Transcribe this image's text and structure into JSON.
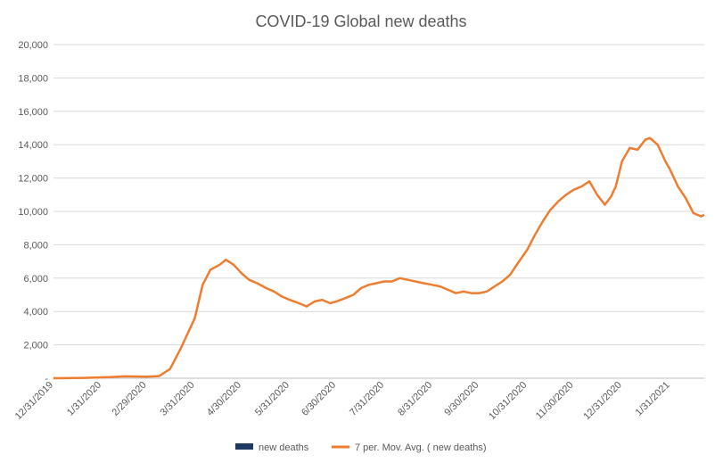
{
  "chart_data": {
    "type": "bar",
    "title": "COVID-19 Global  new deaths",
    "xlabel": "",
    "ylabel": "",
    "ylim": [
      0,
      20000
    ],
    "ytick_labels": [
      "-",
      "2,000",
      "4,000",
      "6,000",
      "8,000",
      "10,000",
      "12,000",
      "14,000",
      "16,000",
      "18,000",
      "20,000"
    ],
    "xtick_labels": [
      "12/31/2019",
      "1/31/2020",
      "2/29/2020",
      "3/31/2020",
      "4/30/2020",
      "5/31/2020",
      "6/30/2020",
      "7/31/2020",
      "8/31/2020",
      "9/30/2020",
      "10/31/2020",
      "11/30/2020",
      "12/31/2020",
      "1/31/2021"
    ],
    "x_start": "2019-12-31",
    "x_end": "2021-02-22",
    "grid": true,
    "legend_position": "bottom",
    "colors": {
      "bars": "#203864",
      "average": "#ed7d31",
      "grid": "#d9d9d9",
      "text": "#595959"
    },
    "series": [
      {
        "name": "new deaths",
        "type": "bar",
        "x_start": "2019-12-31",
        "x_step_days": 1,
        "values": [
          0,
          0,
          0,
          0,
          0,
          0,
          0,
          0,
          0,
          0,
          0,
          0,
          0,
          0,
          0,
          0,
          0,
          0,
          0,
          0,
          0,
          0,
          0,
          0,
          0,
          0,
          0,
          0,
          0,
          0,
          0,
          0,
          0,
          0,
          0,
          0,
          0,
          0,
          0,
          0,
          0,
          0,
          0,
          0,
          0,
          0,
          0,
          0,
          0,
          0,
          0,
          0,
          0,
          0,
          0,
          0,
          0,
          0,
          0,
          0,
          0,
          0,
          0,
          0,
          0,
          0,
          0,
          0,
          0,
          0,
          0,
          0,
          0,
          0,
          0,
          0,
          0,
          0,
          0,
          0,
          0,
          0,
          0,
          0,
          0,
          0,
          0,
          0,
          0,
          0,
          0,
          0,
          0,
          0,
          0,
          0,
          0,
          0,
          0,
          0,
          0,
          0,
          0,
          0,
          0,
          0,
          0,
          0,
          0,
          0,
          0,
          0,
          0,
          0,
          0,
          0,
          0,
          0,
          0,
          0,
          0,
          0,
          0,
          0,
          0,
          0,
          0,
          0,
          0,
          0,
          0,
          0,
          0,
          0,
          0,
          0,
          0,
          0,
          0,
          0,
          0,
          0,
          0,
          0,
          0,
          0,
          0,
          0,
          0,
          0,
          0,
          0,
          0,
          0,
          0,
          0,
          0,
          0,
          0,
          0,
          0,
          0,
          0,
          0,
          0,
          0,
          0,
          0,
          0,
          0,
          0,
          0,
          0,
          0,
          0,
          0,
          0,
          0,
          0,
          0,
          0,
          0,
          0,
          0,
          0,
          0,
          0,
          0,
          0,
          0,
          0,
          0,
          0,
          0,
          0,
          0,
          0,
          0,
          0,
          0,
          0,
          0,
          0,
          0,
          0,
          0,
          0,
          0,
          0,
          0,
          0,
          0,
          0,
          0,
          0,
          0,
          0,
          0,
          0,
          0,
          0,
          0,
          0,
          0,
          0,
          0,
          0,
          0,
          0,
          0,
          0,
          0,
          0,
          0,
          0,
          0,
          0,
          0,
          0,
          0,
          0,
          0,
          0,
          0,
          0,
          0,
          0,
          0,
          0,
          0,
          0,
          0,
          0,
          0,
          0,
          0,
          0,
          0,
          0,
          0,
          0,
          0,
          0,
          0,
          0,
          0,
          0,
          0,
          0,
          0,
          0,
          0,
          0,
          0,
          0,
          0,
          0,
          0,
          0,
          0,
          0,
          0,
          0,
          0,
          0,
          0,
          0,
          0,
          0,
          0,
          0,
          0,
          0,
          0,
          0,
          0,
          0,
          0,
          0,
          0,
          0,
          0,
          0,
          0,
          0,
          0,
          0,
          0,
          0,
          0,
          0,
          0,
          0,
          0,
          0,
          0,
          0,
          0,
          0,
          0,
          0,
          0,
          0,
          0,
          0,
          0,
          0,
          0,
          0,
          0,
          0,
          0,
          0,
          0,
          0,
          0,
          0,
          0,
          0,
          0,
          0,
          0,
          0,
          0,
          0,
          0,
          0,
          0,
          0,
          0,
          0,
          0,
          0,
          0,
          0,
          0,
          0,
          0,
          0,
          0,
          0,
          0,
          0,
          0,
          0,
          0,
          0,
          0,
          0,
          0,
          0,
          0,
          0,
          0,
          0,
          0,
          0,
          0,
          0,
          0,
          0,
          0,
          0,
          0,
          0,
          0,
          0,
          0,
          0,
          0,
          0,
          0,
          0,
          0,
          0,
          0,
          0,
          0,
          0,
          0,
          0,
          0,
          0,
          0,
          0,
          0,
          0,
          0,
          0,
          0,
          0,
          0,
          0,
          0,
          0,
          0,
          0,
          0,
          0,
          0,
          0,
          0,
          0,
          0,
          0,
          0,
          0,
          0,
          0,
          0,
          0,
          0,
          0,
          0,
          0,
          0,
          0,
          0,
          0,
          0,
          0,
          0,
          0,
          0,
          0,
          0,
          0,
          0,
          0,
          0,
          0,
          0,
          0,
          0,
          0,
          0,
          0,
          0,
          0,
          0,
          0,
          0,
          0,
          0,
          0,
          0,
          0,
          0
        ]
      },
      {
        "name": "7 per. Mov. Avg. ( new deaths)",
        "type": "line",
        "x": [
          "2019-12-31",
          "2020-01-20",
          "2020-02-05",
          "2020-02-15",
          "2020-02-29",
          "2020-03-08",
          "2020-03-15",
          "2020-03-22",
          "2020-03-31",
          "2020-04-05",
          "2020-04-10",
          "2020-04-16",
          "2020-04-20",
          "2020-04-25",
          "2020-04-30",
          "2020-05-05",
          "2020-05-10",
          "2020-05-16",
          "2020-05-21",
          "2020-05-26",
          "2020-05-31",
          "2020-06-06",
          "2020-06-11",
          "2020-06-16",
          "2020-06-21",
          "2020-06-26",
          "2020-06-30",
          "2020-07-06",
          "2020-07-11",
          "2020-07-16",
          "2020-07-21",
          "2020-07-26",
          "2020-07-31",
          "2020-08-05",
          "2020-08-10",
          "2020-08-15",
          "2020-08-20",
          "2020-08-25",
          "2020-08-31",
          "2020-09-05",
          "2020-09-10",
          "2020-09-15",
          "2020-09-20",
          "2020-09-25",
          "2020-09-30",
          "2020-10-05",
          "2020-10-10",
          "2020-10-15",
          "2020-10-20",
          "2020-10-25",
          "2020-10-31",
          "2020-11-05",
          "2020-11-10",
          "2020-11-15",
          "2020-11-20",
          "2020-11-25",
          "2020-11-30",
          "2020-12-05",
          "2020-12-10",
          "2020-12-15",
          "2020-12-20",
          "2020-12-24",
          "2020-12-27",
          "2020-12-31",
          "2021-01-05",
          "2021-01-10",
          "2021-01-15",
          "2021-01-18",
          "2021-01-23",
          "2021-01-28",
          "2021-01-31",
          "2021-02-05",
          "2021-02-10",
          "2021-02-15",
          "2021-02-20",
          "2021-02-22"
        ],
        "values": [
          0,
          20,
          70,
          110,
          90,
          130,
          550,
          1800,
          3600,
          5600,
          6500,
          6800,
          7100,
          6800,
          6300,
          5900,
          5700,
          5400,
          5200,
          4900,
          4700,
          4500,
          4300,
          4600,
          4700,
          4500,
          4600,
          4800,
          5000,
          5400,
          5600,
          5700,
          5800,
          5800,
          6000,
          5900,
          5800,
          5700,
          5600,
          5500,
          5300,
          5100,
          5200,
          5100,
          5100,
          5200,
          5500,
          5800,
          6200,
          6900,
          7700,
          8600,
          9400,
          10100,
          10600,
          11000,
          11300,
          11500,
          11800,
          11000,
          10400,
          10900,
          11500,
          13000,
          13800,
          13700,
          14300,
          14400,
          14000,
          13000,
          12500,
          11500,
          10800,
          9900,
          9700,
          9800
        ]
      }
    ]
  }
}
